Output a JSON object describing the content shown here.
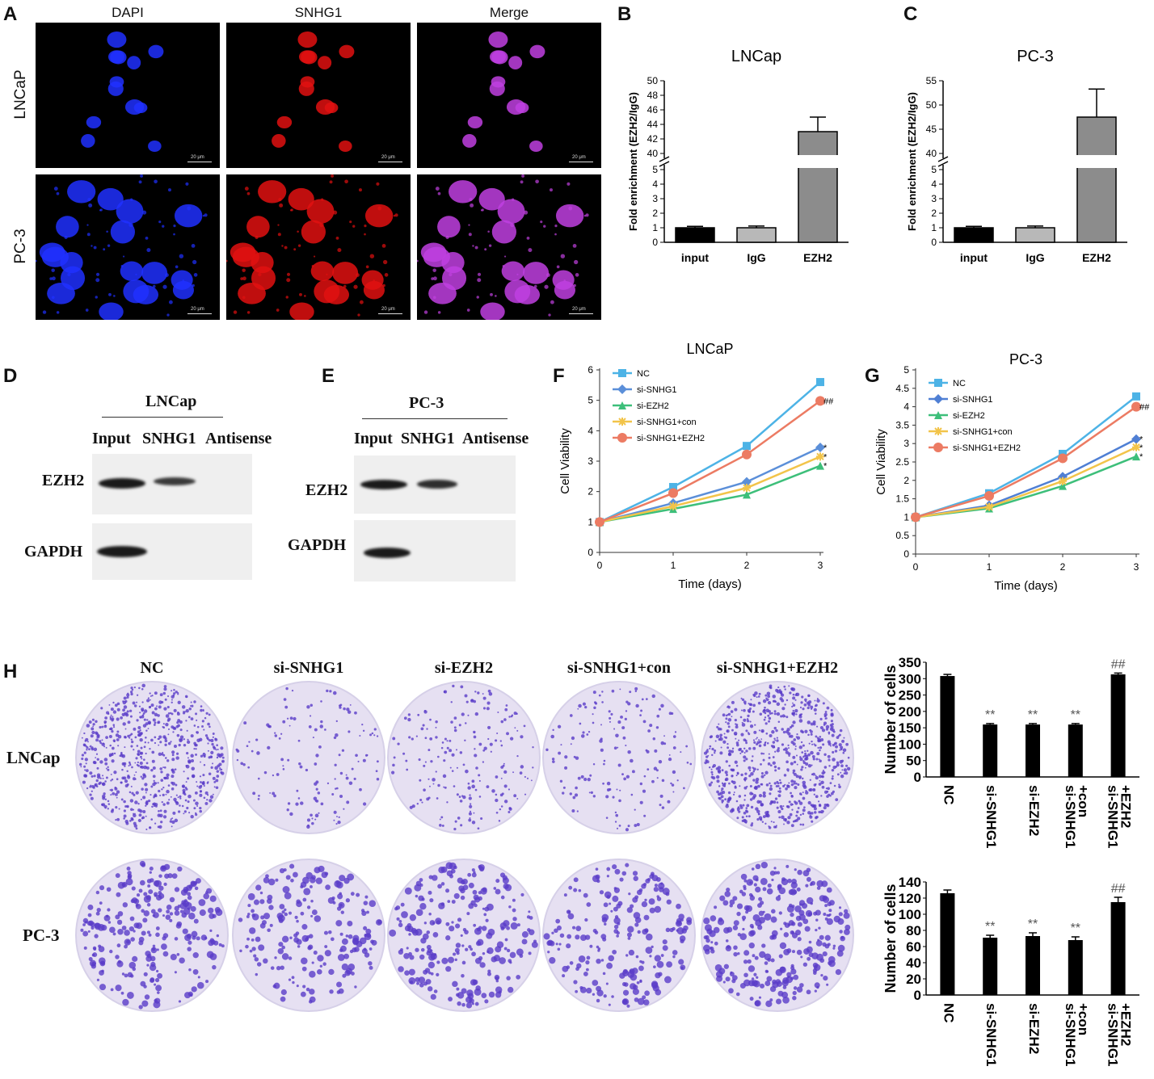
{
  "panels": {
    "A": "A",
    "B": "B",
    "C": "C",
    "D": "D",
    "E": "E",
    "F": "F",
    "G": "G",
    "H": "H"
  },
  "panelA": {
    "columns": [
      "DAPI",
      "SNHG1",
      "Merge"
    ],
    "rows": [
      "LNCaP",
      "PC-3"
    ],
    "scale": "20 μm"
  },
  "chart_data": [
    {
      "type": "bar",
      "panel": "B",
      "title": "LNCap",
      "ylabel": "Fold enrichment (EZH2/IgG)",
      "categories": [
        "input",
        "IgG",
        "EZH2"
      ],
      "values": [
        1.0,
        1.0,
        43.0
      ],
      "errors": [
        0.1,
        0.12,
        2.0
      ],
      "colors": [
        "#000000",
        "#b8b8b8",
        "#8c8c8c"
      ],
      "axis_break": {
        "lower": [
          0,
          5
        ],
        "upper": [
          40,
          50
        ]
      },
      "lower_ticks": [
        "0",
        "1",
        "2",
        "3",
        "4",
        "5"
      ],
      "upper_ticks": [
        "40",
        "42",
        "44",
        "46",
        "48",
        "50"
      ]
    },
    {
      "type": "bar",
      "panel": "C",
      "title": "PC-3",
      "ylabel": "Fold enrichment (EZH2/IgG)",
      "categories": [
        "input",
        "IgG",
        "EZH2"
      ],
      "values": [
        1.0,
        1.0,
        47.5
      ],
      "errors": [
        0.1,
        0.12,
        5.8
      ],
      "colors": [
        "#000000",
        "#b8b8b8",
        "#8c8c8c"
      ],
      "axis_break": {
        "lower": [
          0,
          5
        ],
        "upper": [
          40,
          55
        ]
      },
      "lower_ticks": [
        "0",
        "1",
        "2",
        "3",
        "4",
        "5"
      ],
      "upper_ticks": [
        "40",
        "45",
        "50",
        "55"
      ]
    },
    {
      "type": "line",
      "panel": "F",
      "title": "LNCaP",
      "xlabel": "Time (days)",
      "ylabel": "Cell Viability",
      "x": [
        0,
        1,
        2,
        3
      ],
      "xticks": [
        "0",
        "1",
        "2",
        "3"
      ],
      "yticks": [
        "0",
        "1",
        "2",
        "3",
        "4",
        "5",
        "6"
      ],
      "ylim": [
        0,
        6
      ],
      "series": [
        {
          "name": "NC",
          "values": [
            1.0,
            2.15,
            3.5,
            5.6
          ],
          "color": "#4db3e6",
          "marker": "square",
          "annotation": ""
        },
        {
          "name": "si-SNHG1",
          "values": [
            1.0,
            1.62,
            2.32,
            3.45
          ],
          "color": "#5b8fd9",
          "marker": "diamond",
          "annotation": "*"
        },
        {
          "name": "si-EZH2",
          "values": [
            1.0,
            1.43,
            1.9,
            2.85
          ],
          "color": "#3dbf7a",
          "marker": "triangle",
          "annotation": "*"
        },
        {
          "name": "si-SNHG1+con",
          "values": [
            1.0,
            1.52,
            2.12,
            3.15
          ],
          "color": "#f2c44a",
          "marker": "star",
          "annotation": "*"
        },
        {
          "name": "si-SNHG1+EZH2",
          "values": [
            1.0,
            1.95,
            3.22,
            4.98
          ],
          "color": "#ec7b63",
          "marker": "circle",
          "annotation": "##"
        }
      ]
    },
    {
      "type": "line",
      "panel": "G",
      "title": "PC-3",
      "xlabel": "Time (days)",
      "ylabel": "Cell Viability",
      "x": [
        0,
        1,
        2,
        3
      ],
      "xticks": [
        "0",
        "1",
        "2",
        "3"
      ],
      "yticks": [
        "0",
        "0.5",
        "1",
        "1.5",
        "2",
        "2.5",
        "3",
        "3.5",
        "4",
        "4.5",
        "5"
      ],
      "ylim": [
        0,
        5
      ],
      "series": [
        {
          "name": "NC",
          "values": [
            1.0,
            1.65,
            2.72,
            4.28
          ],
          "color": "#4db3e6",
          "marker": "square",
          "annotation": ""
        },
        {
          "name": "si-SNHG1",
          "values": [
            1.0,
            1.32,
            2.1,
            3.12
          ],
          "color": "#4f7fd4",
          "marker": "diamond",
          "annotation": "*"
        },
        {
          "name": "si-EZH2",
          "values": [
            1.0,
            1.24,
            1.85,
            2.65
          ],
          "color": "#3dbf7a",
          "marker": "triangle",
          "annotation": "*"
        },
        {
          "name": "si-SNHG1+con",
          "values": [
            1.0,
            1.28,
            1.98,
            2.9
          ],
          "color": "#f2c44a",
          "marker": "star",
          "annotation": "*"
        },
        {
          "name": "si-SNHG1+EZH2",
          "values": [
            1.0,
            1.58,
            2.6,
            4.0
          ],
          "color": "#ec7b63",
          "marker": "circle",
          "annotation": "##"
        }
      ]
    },
    {
      "type": "bar",
      "panel": "H-LNCap",
      "ylabel": "Number of cells",
      "categories": [
        "NC",
        "si-SNHG1",
        "si-EZH2",
        "si-SNHG1\n+con",
        "si-SNHG1\n+EZH2"
      ],
      "values": [
        308,
        160,
        160,
        160,
        313
      ],
      "errors": [
        5,
        3,
        3,
        3,
        4
      ],
      "annotations": [
        "",
        "**",
        "**",
        "**",
        "##"
      ],
      "yticks": [
        "0",
        "50",
        "100",
        "150",
        "200",
        "250",
        "300",
        "350"
      ],
      "ylim": [
        0,
        350
      ]
    },
    {
      "type": "bar",
      "panel": "H-PC-3",
      "ylabel": "Number of cells",
      "categories": [
        "NC",
        "si-SNHG1",
        "si-EZH2",
        "si-SNHG1\n+con",
        "si-SNHG1\n+EZH2"
      ],
      "values": [
        126,
        71,
        73,
        68,
        115
      ],
      "errors": [
        4,
        3,
        4,
        4,
        6
      ],
      "annotations": [
        "",
        "**",
        "**",
        "**",
        "##"
      ],
      "yticks": [
        "0",
        "20",
        "40",
        "60",
        "80",
        "100",
        "120",
        "140"
      ],
      "ylim": [
        0,
        140
      ]
    }
  ],
  "panelD": {
    "title": "LNCap",
    "lanes": [
      "Input",
      "SNHG1",
      "Antisense"
    ],
    "rows": [
      "EZH2",
      "GAPDH"
    ]
  },
  "panelE": {
    "title": "PC-3",
    "lanes": [
      "Input",
      "SNHG1",
      "Antisense"
    ],
    "rows": [
      "EZH2",
      "GAPDH"
    ]
  },
  "panelH": {
    "columns": [
      "NC",
      "si-SNHG1",
      "si-EZH2",
      "si-SNHG1+con",
      "si-SNHG1+EZH2"
    ],
    "rows": [
      "LNCap",
      "PC-3"
    ],
    "dish_color": "#e6e0f2",
    "colony_color": "#5a3cc8"
  }
}
